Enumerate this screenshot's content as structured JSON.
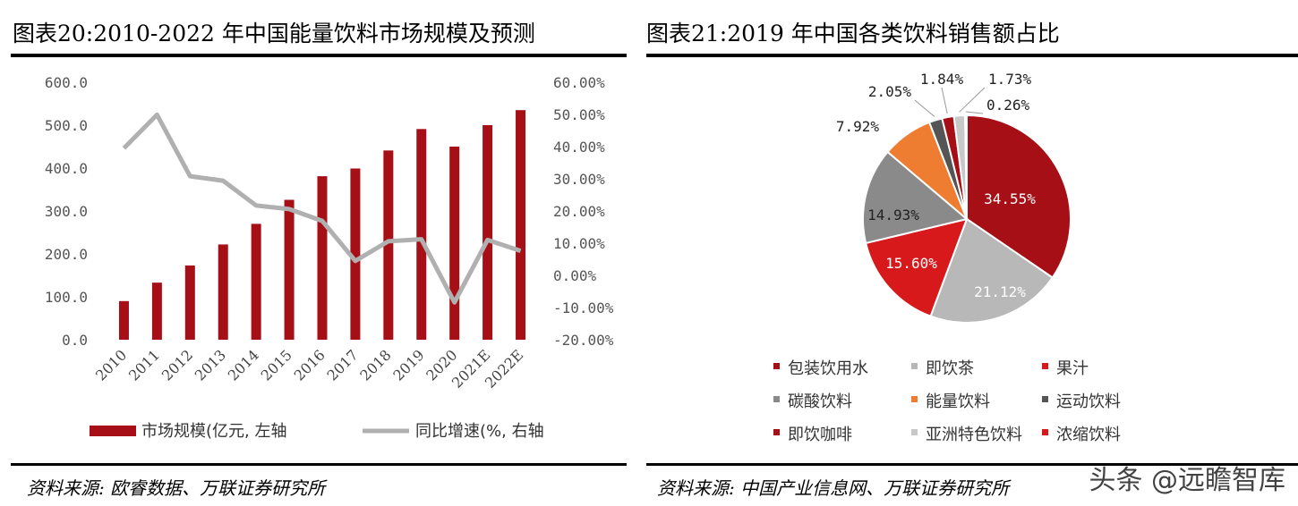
{
  "left": {
    "title": "图表20:2010-2022 年中国能量饮料市场规模及预测",
    "source": "资料来源:  欧睿数据、万联证券研究所"
  },
  "right": {
    "title": "图表21:2019 年中国各类饮料销售额占比",
    "source": "资料来源:  中国产业信息网、万联证券研究所"
  },
  "watermark": "头条 @远瞻智库",
  "chart_data": [
    {
      "type": "bar",
      "title": "图表20:2010-2022 年中国能量饮料市场规模及预测",
      "categories": [
        "2010",
        "2011",
        "2012",
        "2013",
        "2014",
        "2015",
        "2016",
        "2017",
        "2018",
        "2019",
        "2020",
        "2021E",
        "2022E"
      ],
      "series": [
        {
          "name": "市场规模(亿元,  左轴",
          "axis": "left",
          "kind": "bar",
          "color": "#a50f15",
          "values": [
            90,
            133,
            173,
            222,
            270,
            326,
            381,
            399,
            441,
            491,
            450,
            500,
            535
          ]
        },
        {
          "name": "同比增速(%,  右轴",
          "axis": "right",
          "kind": "line",
          "color": "#b0b0b0",
          "values": [
            39.5,
            49.9,
            30.8,
            29.4,
            21.7,
            20.6,
            16.9,
            4.5,
            10.6,
            11.2,
            -8.4,
            11.0,
            7.6
          ]
        }
      ],
      "ylim_left": [
        0,
        600
      ],
      "ylim_right": [
        -20,
        60
      ],
      "yticks_left": [
        "600.0",
        "500.0",
        "400.0",
        "300.0",
        "200.0",
        "100.0",
        "0.0"
      ],
      "yticks_right": [
        "60.00%",
        "50.00%",
        "40.00%",
        "30.00%",
        "20.00%",
        "10.00%",
        "0.00%",
        "-10.00%",
        "-20.00%"
      ],
      "legend": [
        "市场规模(亿元,  左轴",
        "同比增速(%,  右轴"
      ],
      "legend_position": "bottom"
    },
    {
      "type": "pie",
      "title": "图表21:2019 年中国各类饮料销售额占比",
      "slices": [
        {
          "name": "包装饮用水",
          "value": 34.55,
          "label": "34.55%",
          "color": "#a50f15"
        },
        {
          "name": "即饮茶",
          "value": 21.12,
          "label": "21.12%",
          "color": "#b8b8b8"
        },
        {
          "name": "果汁",
          "value": 15.6,
          "label": "15.60%",
          "color": "#d7191c"
        },
        {
          "name": "碳酸饮料",
          "value": 14.93,
          "label": "14.93%",
          "color": "#8a8a8a"
        },
        {
          "name": "能量饮料",
          "value": 7.92,
          "label": "7.92%",
          "color": "#ee7d31"
        },
        {
          "name": "运动饮料",
          "value": 2.05,
          "label": "2.05%",
          "color": "#555555"
        },
        {
          "name": "即饮咖啡",
          "value": 1.84,
          "label": "1.84%",
          "color": "#a50f15"
        },
        {
          "name": "亚洲特色饮料",
          "value": 1.73,
          "label": "1.73%",
          "color": "#c8c8c8"
        },
        {
          "name": "浓缩饮料",
          "value": 0.26,
          "label": "0.26%",
          "color": "#d7191c"
        }
      ],
      "legend_position": "bottom"
    }
  ]
}
